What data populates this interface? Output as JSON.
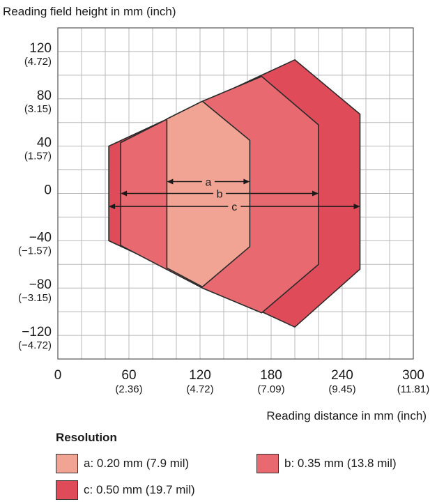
{
  "chart_data": {
    "type": "area",
    "title": "",
    "ylabel": "Reading field height in mm (inch)",
    "xlabel": "Reading distance in mm (inch)",
    "xlim": [
      0,
      300
    ],
    "ylim": [
      -140,
      140
    ],
    "grid": true,
    "x_ticks": [
      {
        "v": 0,
        "label": "0",
        "sub": ""
      },
      {
        "v": 60,
        "label": "60",
        "sub": "(2.36)"
      },
      {
        "v": 120,
        "label": "120",
        "sub": "(4.72)"
      },
      {
        "v": 180,
        "label": "180",
        "sub": "(7.09)"
      },
      {
        "v": 240,
        "label": "240",
        "sub": "(9.45)"
      },
      {
        "v": 300,
        "label": "300",
        "sub": "(11.81)"
      }
    ],
    "y_ticks": [
      {
        "v": 120,
        "label": "120",
        "sub": "(4.72)"
      },
      {
        "v": 80,
        "label": "80",
        "sub": "(3.15)"
      },
      {
        "v": 40,
        "label": "40",
        "sub": "(1.57)"
      },
      {
        "v": 0,
        "label": "0",
        "sub": ""
      },
      {
        "v": -40,
        "label": "−40",
        "sub": "(−1.57)"
      },
      {
        "v": -80,
        "label": "−80",
        "sub": "(−3.15)"
      },
      {
        "v": -120,
        "label": "−120",
        "sub": "(−4.72)"
      }
    ],
    "series": [
      {
        "name": "c: 0.50 mm (19.7 mil)",
        "key": "c",
        "color": "#e04b5a",
        "points": [
          [
            43,
            40
          ],
          [
            43,
            -40
          ],
          [
            200,
            -113
          ],
          [
            255,
            -64
          ],
          [
            255,
            67
          ],
          [
            200,
            113
          ]
        ],
        "span": [
          43,
          255
        ],
        "y_arrow": -11
      },
      {
        "name": "b: 0.35 mm (13.8 mil)",
        "key": "b",
        "color": "#e86a70",
        "points": [
          [
            53,
            43
          ],
          [
            53,
            -44
          ],
          [
            122,
            -80
          ],
          [
            172,
            -101
          ],
          [
            220,
            -60
          ],
          [
            220,
            58
          ],
          [
            172,
            99
          ],
          [
            122,
            78
          ]
        ],
        "span": [
          53,
          220
        ],
        "y_arrow": 0
      },
      {
        "name": "a: 0.20 mm (7.9 mil)",
        "key": "a",
        "color": "#f2a494",
        "points": [
          [
            92,
            63
          ],
          [
            92,
            -63
          ],
          [
            122,
            -79
          ],
          [
            162,
            -45
          ],
          [
            162,
            45
          ],
          [
            122,
            78
          ]
        ],
        "span": [
          92,
          162
        ],
        "y_arrow": 10
      }
    ],
    "legend": {
      "title": "Resolution",
      "placement": "bottom",
      "items": [
        {
          "key": "a",
          "label": "a: 0.20 mm (7.9 mil)",
          "color": "#f2a494"
        },
        {
          "key": "b",
          "label": "b: 0.35 mm (13.8 mil)",
          "color": "#e86a70"
        },
        {
          "key": "c",
          "label": "c: 0.50 mm (19.7 mil)",
          "color": "#e04b5a"
        }
      ]
    }
  }
}
